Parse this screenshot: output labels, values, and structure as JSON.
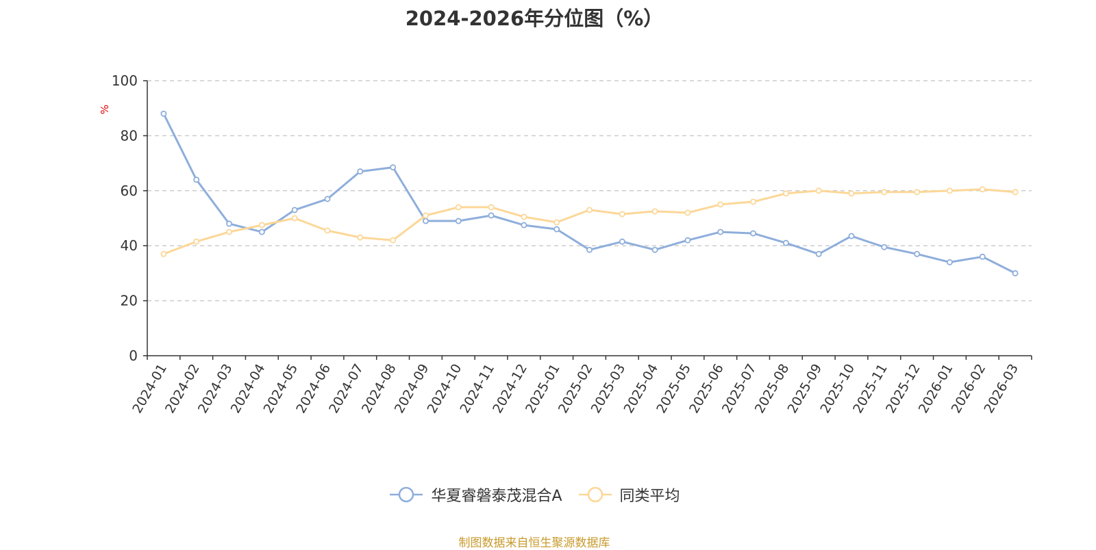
{
  "chart_data": {
    "type": "line",
    "title": "2024-2026年分位图（%）",
    "ylabel": "%",
    "ylim": [
      0,
      100
    ],
    "yticks": [
      0,
      20,
      40,
      60,
      80,
      100
    ],
    "grid": true,
    "legend_position": "bottom",
    "x": [
      "2024-01",
      "2024-02",
      "2024-03",
      "2024-04",
      "2024-05",
      "2024-06",
      "2024-07",
      "2024-08",
      "2024-09",
      "2024-10",
      "2024-11",
      "2024-12",
      "2025-01",
      "2025-02",
      "2025-03",
      "2025-04",
      "2025-05",
      "2025-06",
      "2025-07",
      "2025-08",
      "2025-09",
      "2025-10",
      "2025-11",
      "2025-12",
      "2026-01",
      "2026-02",
      "2026-03"
    ],
    "series": [
      {
        "name": "华夏睿磐泰茂混合A",
        "color": "#8eaedb",
        "values": [
          88,
          64,
          48,
          45,
          53,
          57,
          67,
          68.5,
          49,
          49,
          51,
          47.5,
          46,
          38.5,
          41.5,
          38.5,
          42,
          45,
          44.5,
          41,
          37,
          43.5,
          39.5,
          37,
          34,
          36,
          30
        ]
      },
      {
        "name": "同类平均",
        "color": "#fcd797",
        "values": [
          37,
          41.5,
          45,
          47.5,
          50,
          45.5,
          43,
          42,
          51,
          54,
          54,
          50.5,
          48.5,
          53,
          51.5,
          52.5,
          52,
          55,
          56,
          59,
          60,
          59,
          59.5,
          59.5,
          60,
          60.5,
          59.5
        ]
      }
    ]
  },
  "footer": {
    "source": "制图数据来自恒生聚源数据库"
  }
}
